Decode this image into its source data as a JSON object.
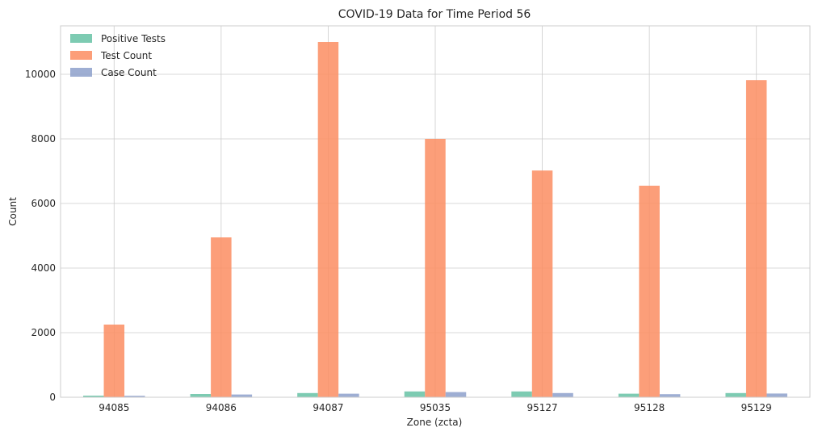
{
  "chart_data": {
    "type": "bar",
    "title": "COVID-19 Data for Time Period 56",
    "xlabel": "Zone (zcta)",
    "ylabel": "Count",
    "categories": [
      "94085",
      "94086",
      "94087",
      "95035",
      "95127",
      "95128",
      "95129"
    ],
    "ylim": [
      0,
      11500
    ],
    "yticks": [
      0,
      2000,
      4000,
      6000,
      8000,
      10000
    ],
    "grid": true,
    "legend_position": "top-left",
    "series": [
      {
        "name": "Positive Tests",
        "color": "#66c2a5",
        "values": [
          50,
          100,
          130,
          180,
          180,
          110,
          130
        ]
      },
      {
        "name": "Test Count",
        "color": "#fc8d62",
        "values": [
          2250,
          4950,
          11000,
          8000,
          7020,
          6550,
          9820
        ]
      },
      {
        "name": "Case Count",
        "color": "#8da0cb",
        "values": [
          45,
          85,
          110,
          160,
          130,
          95,
          115
        ]
      }
    ]
  }
}
